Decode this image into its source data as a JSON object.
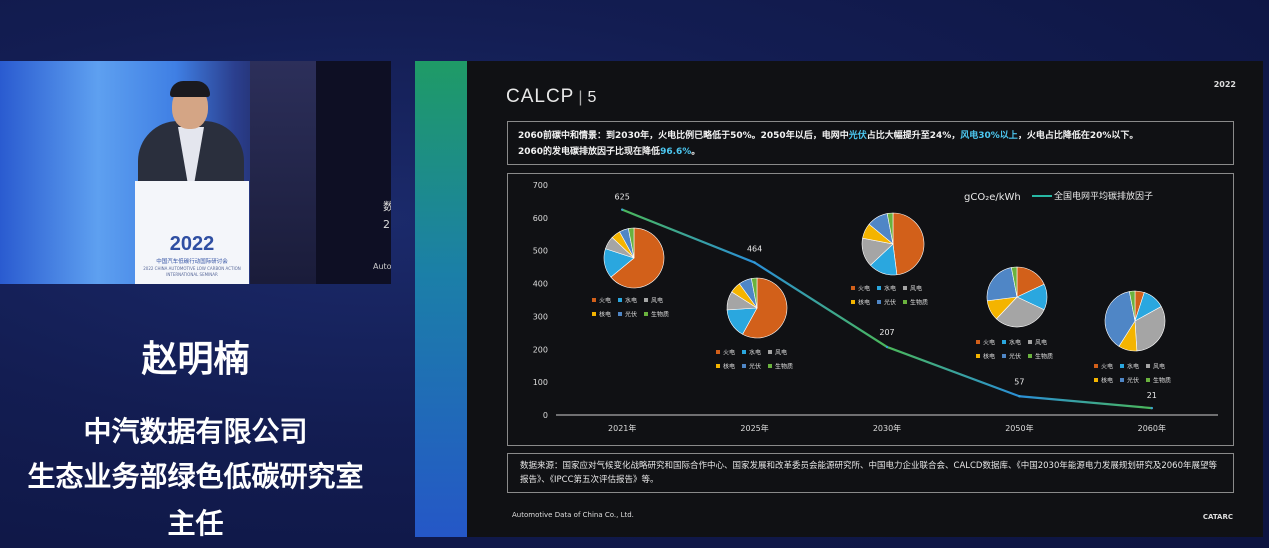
{
  "speaker": {
    "name": "赵明楠",
    "organization": "中汽数据有限公司",
    "department": "生态业务部绿色低碳研究室",
    "role": "主任"
  },
  "video": {
    "podium_year": "2022",
    "podium_name": "中国汽车低碳行动国际研讨会",
    "podium_en_1": "2022 CHINA AUTOMOTIVE LOW CARBON ACTION",
    "podium_en_2": "INTERNATIONAL SEMINAR",
    "screen_text": "数\n2",
    "screen_auto": "Auto"
  },
  "slide": {
    "logo_main": "CALCP",
    "logo_sep": "|",
    "logo_num": "5",
    "year": "2022",
    "subtitle_parts": [
      {
        "text": "2060前碳中和情景：到2030年，火电比例已略低于50%。2050年以后，电网中",
        "hl": false
      },
      {
        "text": "光伏",
        "hl": true
      },
      {
        "text": "占比大幅提升至24%，",
        "hl": false
      },
      {
        "text": "风电30%以上",
        "hl": true
      },
      {
        "text": "，火电占比降低在20%以下。",
        "hl": false
      },
      {
        "text": "\n2060的发电碳排放因子比现在降低",
        "hl": false
      },
      {
        "text": "96.6%",
        "hl": true
      },
      {
        "text": "。",
        "hl": false
      }
    ],
    "source_text": "数据来源：国家应对气候变化战略研究和国际合作中心、国家发展和改革委员会能源研究所、中国电力企业联合会、CALCD数据库、《中国2030年能源电力发展规划研究及2060年展望等报告》、《IPCC第五次评估报告》等。",
    "footer_left": "Automotive Data of China Co., Ltd.",
    "footer_right": "CATARC"
  },
  "chart_data": {
    "type": "line",
    "unit_label": "gCO₂e/kWh",
    "series": [
      {
        "name": "全国电网平均碳排放因子",
        "color": "#27b8a4"
      }
    ],
    "categories": [
      "2021年",
      "2025年",
      "2030年",
      "2050年",
      "2060年"
    ],
    "values": [
      625,
      464,
      207,
      57,
      21
    ],
    "y_ticks": [
      0,
      100,
      200,
      300,
      400,
      500,
      600,
      700
    ],
    "ylim": [
      0,
      700
    ],
    "grid": false,
    "pie_legend": [
      {
        "label": "火电",
        "color": "#d2601a"
      },
      {
        "label": "水电",
        "color": "#2aa7df"
      },
      {
        "label": "风电",
        "color": "#a5a5a5"
      },
      {
        "label": "核电",
        "color": "#f4b400"
      },
      {
        "label": "光伏",
        "color": "#4f86c6"
      },
      {
        "label": "生物质",
        "color": "#6ab23e"
      }
    ],
    "pies": [
      {
        "year": "2021年",
        "slices": [
          {
            "label": "火电",
            "value": 64
          },
          {
            "label": "水电",
            "value": 16
          },
          {
            "label": "风电",
            "value": 7
          },
          {
            "label": "核电",
            "value": 5
          },
          {
            "label": "光伏",
            "value": 5
          },
          {
            "label": "生物质",
            "value": 3
          }
        ]
      },
      {
        "year": "2025年",
        "slices": [
          {
            "label": "火电",
            "value": 58
          },
          {
            "label": "水电",
            "value": 16
          },
          {
            "label": "风电",
            "value": 10
          },
          {
            "label": "核电",
            "value": 6
          },
          {
            "label": "光伏",
            "value": 7
          },
          {
            "label": "生物质",
            "value": 3
          }
        ]
      },
      {
        "year": "2030年",
        "slices": [
          {
            "label": "火电",
            "value": 48
          },
          {
            "label": "水电",
            "value": 15
          },
          {
            "label": "风电",
            "value": 15
          },
          {
            "label": "核电",
            "value": 8
          },
          {
            "label": "光伏",
            "value": 11
          },
          {
            "label": "生物质",
            "value": 3
          }
        ]
      },
      {
        "year": "2050年",
        "slices": [
          {
            "label": "火电",
            "value": 18
          },
          {
            "label": "水电",
            "value": 14
          },
          {
            "label": "风电",
            "value": 30
          },
          {
            "label": "核电",
            "value": 11
          },
          {
            "label": "光伏",
            "value": 24
          },
          {
            "label": "生物质",
            "value": 3
          }
        ]
      },
      {
        "year": "2060年",
        "slices": [
          {
            "label": "火电",
            "value": 5
          },
          {
            "label": "水电",
            "value": 12
          },
          {
            "label": "风电",
            "value": 32
          },
          {
            "label": "核电",
            "value": 10
          },
          {
            "label": "光伏",
            "value": 38
          },
          {
            "label": "生物质",
            "value": 3
          }
        ]
      }
    ]
  }
}
